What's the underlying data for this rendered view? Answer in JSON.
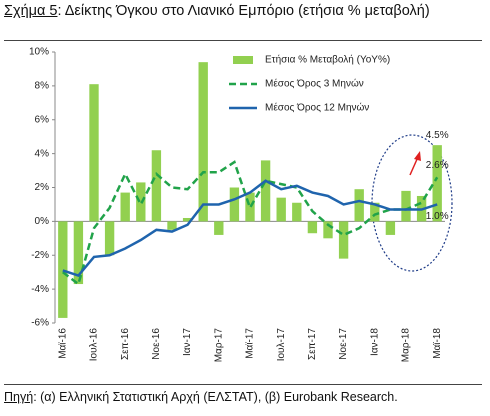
{
  "chart_data": {
    "type": "bar_line",
    "figure_label": "Σχήμα 5",
    "title": ": Δείκτης Όγκου στο Λιανικό Εμπόριο (ετήσια % μεταβολή)",
    "source_label": "Πηγή",
    "source": ": (α) Ελληνική Στατιστική Αρχή (ΕΛΣΤΑΤ), (β) Eurobank Research.",
    "categories": [
      "Μαϊ-16",
      null,
      "Ιουλ-16",
      null,
      "Σεπ-16",
      null,
      "Νοε-16",
      null,
      "Ιαν-17",
      null,
      "Μαρ-17",
      null,
      "Μαϊ-17",
      null,
      "Ιουλ-17",
      null,
      "Σεπ-17",
      null,
      "Νοε-17",
      null,
      "Ιαν-18",
      null,
      "Μαρ-18",
      null,
      "Μαϊ-18"
    ],
    "series": [
      {
        "name": "Ετήσια % Μεταβολή (YoY%)",
        "kind": "bar",
        "color": "#92d050",
        "values": [
          -5.7,
          -3.7,
          8.1,
          -2.0,
          1.7,
          2.3,
          4.2,
          -0.5,
          0.2,
          9.4,
          -0.8,
          2.0,
          1.7,
          3.6,
          1.4,
          1.1,
          -0.7,
          -1.0,
          -2.2,
          1.9,
          1.1,
          -0.8,
          1.8,
          1.5,
          4.5
        ]
      },
      {
        "name": "Μέσος Όρος 3 Μηνών",
        "kind": "dashed-line",
        "color": "#21a34a",
        "values": [
          -3.0,
          -3.7,
          -0.4,
          0.8,
          2.8,
          1.0,
          2.8,
          2.0,
          1.9,
          2.9,
          2.9,
          3.5,
          0.8,
          2.4,
          2.2,
          2.0,
          0.6,
          -0.2,
          -0.8,
          -0.4,
          0.4,
          0.7,
          0.7,
          1.1,
          2.6
        ]
      },
      {
        "name": "Μέσος Όρος 12 Μηνών",
        "kind": "line",
        "color": "#1f64ad",
        "values": [
          -2.9,
          -3.2,
          -2.1,
          -2.0,
          -1.6,
          -1.1,
          -0.5,
          -0.6,
          -0.2,
          1.0,
          1.0,
          1.3,
          1.7,
          2.4,
          1.9,
          2.1,
          1.7,
          1.5,
          1.0,
          1.2,
          1.0,
          0.7,
          0.7,
          0.7,
          1.0
        ]
      }
    ],
    "annotations": [
      "4.5%",
      "2.6%",
      "1.0%"
    ],
    "ylim": [
      -6,
      10
    ],
    "yticks": [
      {
        "value": -6,
        "label": "-6%"
      },
      {
        "value": -4,
        "label": "-4%"
      },
      {
        "value": -2,
        "label": "-2%"
      },
      {
        "value": 0,
        "label": "0%"
      },
      {
        "value": 2,
        "label": "2%"
      },
      {
        "value": 4,
        "label": "4%"
      },
      {
        "value": 6,
        "label": "6%"
      },
      {
        "value": 8,
        "label": "8%"
      },
      {
        "value": 10,
        "label": "10%"
      }
    ],
    "legend": "top-right"
  }
}
